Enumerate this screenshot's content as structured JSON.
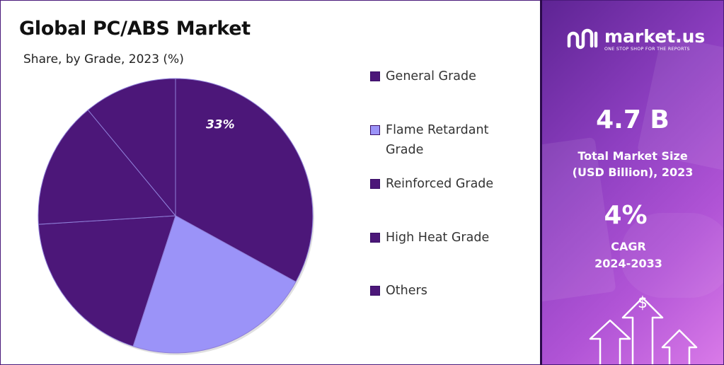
{
  "chart_data": {
    "type": "pie",
    "title": "Global PC/ABS Market",
    "subtitle": "Share, by Grade, 2023 (%)",
    "categories": [
      "General Grade",
      "Flame Retardant Grade",
      "Reinforced Grade",
      "High Heat Grade",
      "Others"
    ],
    "values": [
      33,
      22,
      19,
      15,
      11
    ],
    "data_labels": [
      "33%",
      "",
      "",
      "",
      ""
    ],
    "legend_position": "right",
    "colors": [
      "#4c1779",
      "#9b93f8",
      "#4c1779",
      "#4c1779",
      "#4c1779"
    ]
  },
  "legend": {
    "items": [
      {
        "label": "General Grade",
        "color": "#4c1779"
      },
      {
        "label": "Flame Retardant Grade",
        "color": "#9b93f8"
      },
      {
        "label": "Reinforced Grade",
        "color": "#4c1779"
      },
      {
        "label": "High Heat Grade",
        "color": "#4c1779"
      },
      {
        "label": "Others",
        "color": "#4c1779"
      }
    ]
  },
  "sidebar": {
    "brand_name": "market.us",
    "brand_tagline": "ONE STOP SHOP FOR THE REPORTS",
    "market_size_value": "4.7 B",
    "market_size_label_line1": "Total Market Size",
    "market_size_label_line2": "(USD Billion), 2023",
    "cagr_value": "4%",
    "cagr_label_line1": "CAGR",
    "cagr_label_line2": "2024-2033",
    "dollar_symbol": "$"
  }
}
